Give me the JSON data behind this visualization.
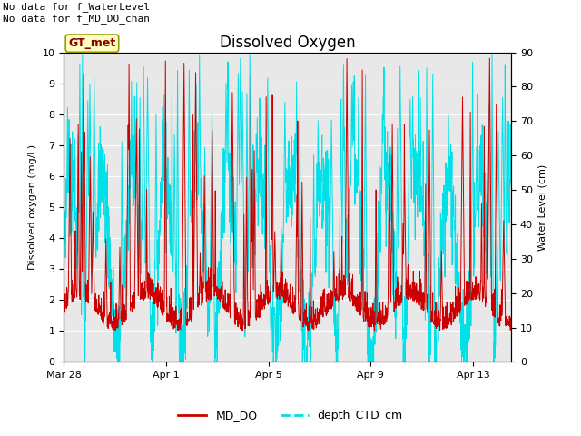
{
  "title": "Dissolved Oxygen",
  "ylabel_left": "Dissolved oxygen (mg/L)",
  "ylabel_right": "Water Level (cm)",
  "ylim_left": [
    0.0,
    10.0
  ],
  "ylim_right": [
    0,
    90
  ],
  "yticks_left": [
    0.0,
    1.0,
    2.0,
    3.0,
    4.0,
    5.0,
    6.0,
    7.0,
    8.0,
    9.0,
    10.0
  ],
  "yticks_right": [
    0,
    10,
    20,
    30,
    40,
    50,
    60,
    70,
    80,
    90
  ],
  "xtick_labels": [
    "Mar 28",
    "Apr 1",
    "Apr 5",
    "Apr 9",
    "Apr 13"
  ],
  "color_md_do": "#cc0000",
  "color_depth_ctd": "#00e0e8",
  "legend_label_1": "MD_DO",
  "legend_label_2": "depth_CTD_cm",
  "annotation_text": "No data for f_WaterLevel\nNo data for f_MD_DO_chan",
  "gt_met_label": "GT_met",
  "gt_met_facecolor": "#ffffc0",
  "gt_met_edgecolor": "#999900",
  "plot_bg_color": "#e8e8e8",
  "title_fontsize": 12,
  "annotation_fontsize": 8,
  "seed": 42,
  "n_points": 2000
}
